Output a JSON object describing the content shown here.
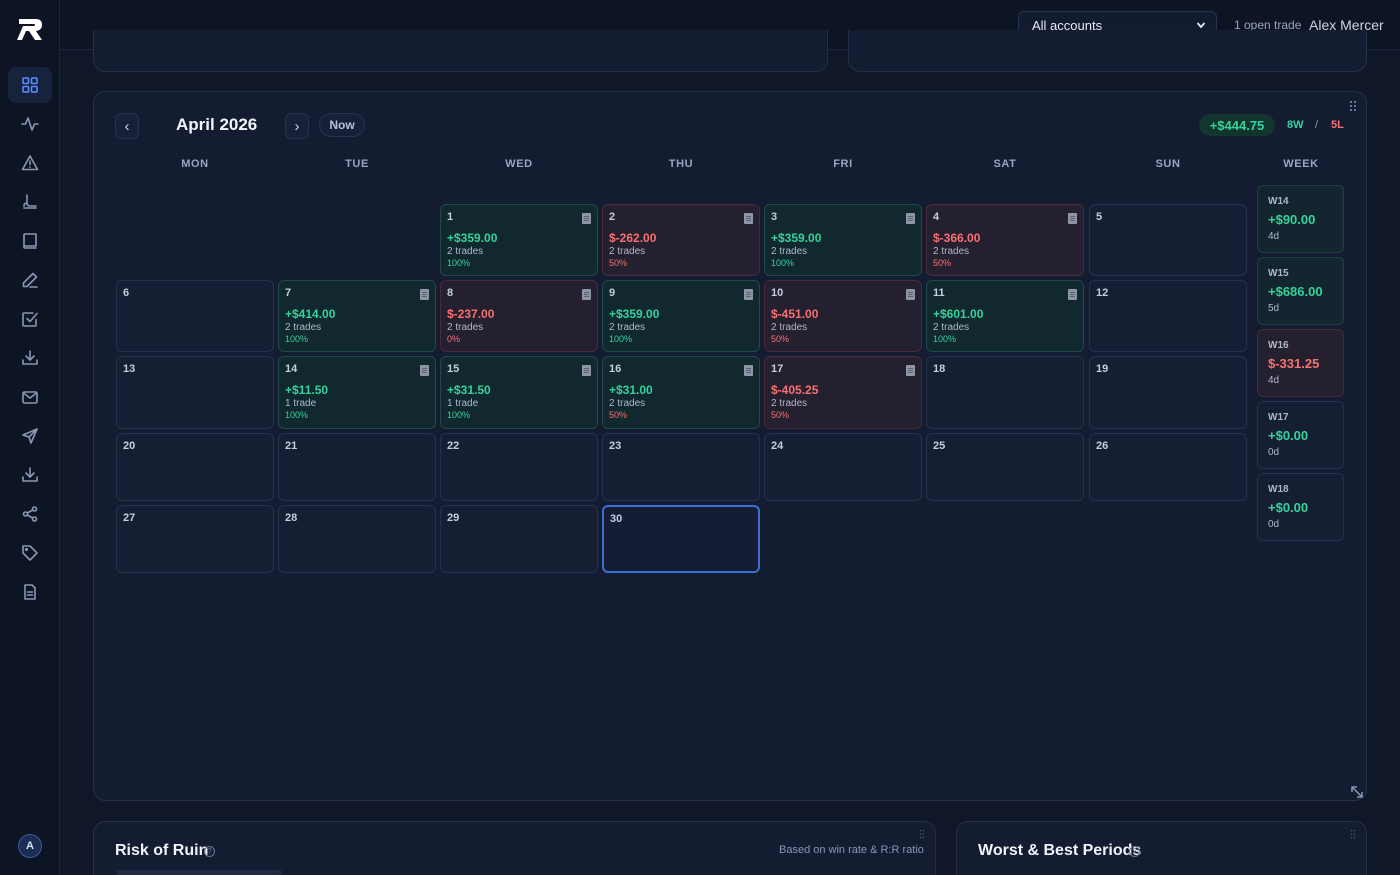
{
  "sidebar": {
    "icons": [
      "dashboard-icon",
      "activity-icon",
      "alert-icon",
      "rocket-icon",
      "book-icon",
      "pen-icon",
      "checkbox-icon",
      "download-icon",
      "mail-icon",
      "send-icon",
      "import-icon",
      "share-icon",
      "tag-icon",
      "file-icon"
    ],
    "avatar": "A"
  },
  "topbar": {
    "account_selected": "All accounts",
    "open_trades": "1 open trade",
    "user_name": "Alex Mercer"
  },
  "calendar": {
    "month": "April 2026",
    "now_label": "Now",
    "prev_label": "‹",
    "next_label": "›",
    "total_pnl": "+$444.75",
    "wins": "8W",
    "separator": "/",
    "losses": "5L",
    "weekdays": [
      "MON",
      "TUE",
      "WED",
      "THU",
      "FRI",
      "SAT",
      "SUN"
    ],
    "week_header": "WEEK",
    "days": [
      {
        "num": "1",
        "pnl": "+$359.00",
        "trades": "2 trades",
        "rate": "100%",
        "result": "win",
        "note": true
      },
      {
        "num": "2",
        "pnl": "$-262.00",
        "trades": "2 trades",
        "rate": "50%",
        "result": "loss",
        "note": true
      },
      {
        "num": "3",
        "pnl": "+$359.00",
        "trades": "2 trades",
        "rate": "100%",
        "result": "win",
        "note": true
      },
      {
        "num": "4",
        "pnl": "$-366.00",
        "trades": "2 trades",
        "rate": "50%",
        "result": "loss",
        "note": true
      },
      {
        "num": "5"
      },
      {
        "num": "6"
      },
      {
        "num": "7",
        "pnl": "+$414.00",
        "trades": "2 trades",
        "rate": "100%",
        "result": "win",
        "note": true
      },
      {
        "num": "8",
        "pnl": "$-237.00",
        "trades": "2 trades",
        "rate": "0%",
        "result": "loss",
        "note": true
      },
      {
        "num": "9",
        "pnl": "+$359.00",
        "trades": "2 trades",
        "rate": "100%",
        "result": "win",
        "note": true
      },
      {
        "num": "10",
        "pnl": "$-451.00",
        "trades": "2 trades",
        "rate": "50%",
        "result": "loss",
        "note": true
      },
      {
        "num": "11",
        "pnl": "+$601.00",
        "trades": "2 trades",
        "rate": "100%",
        "result": "win",
        "note": true
      },
      {
        "num": "12"
      },
      {
        "num": "13"
      },
      {
        "num": "14",
        "pnl": "+$11.50",
        "trades": "1 trade",
        "rate": "100%",
        "result": "win",
        "note": true
      },
      {
        "num": "15",
        "pnl": "+$31.50",
        "trades": "1 trade",
        "rate": "100%",
        "result": "win",
        "note": true
      },
      {
        "num": "16",
        "pnl": "+$31.00",
        "trades": "2 trades",
        "rate": "50%",
        "result": "win",
        "note": true
      },
      {
        "num": "17",
        "pnl": "$-405.25",
        "trades": "2 trades",
        "rate": "50%",
        "result": "loss",
        "note": true
      },
      {
        "num": "18"
      },
      {
        "num": "19"
      },
      {
        "num": "20"
      },
      {
        "num": "21"
      },
      {
        "num": "22"
      },
      {
        "num": "23"
      },
      {
        "num": "24"
      },
      {
        "num": "25"
      },
      {
        "num": "26"
      },
      {
        "num": "27"
      },
      {
        "num": "28"
      },
      {
        "num": "29"
      },
      {
        "num": "30",
        "today": true
      }
    ],
    "weeks": [
      {
        "label": "W14",
        "pnl": "+$90.00",
        "days": "4d",
        "result": "win"
      },
      {
        "label": "W15",
        "pnl": "+$686.00",
        "days": "5d",
        "result": "win"
      },
      {
        "label": "W16",
        "pnl": "$-331.25",
        "days": "4d",
        "result": "loss"
      },
      {
        "label": "W17",
        "pnl": "+$0.00",
        "days": "0d",
        "result": "neutral"
      },
      {
        "label": "W18",
        "pnl": "+$0.00",
        "days": "0d",
        "result": "neutral"
      }
    ]
  },
  "risk_of_ruin": {
    "title": "Risk of Ruin",
    "subtitle": "Based on win rate & R:R ratio"
  },
  "periods": {
    "title": "Worst & Best Periods"
  },
  "colors": {
    "accent": "#5b8cff",
    "positive": "#34d399",
    "negative": "#f87171",
    "background": "#0f1729"
  }
}
